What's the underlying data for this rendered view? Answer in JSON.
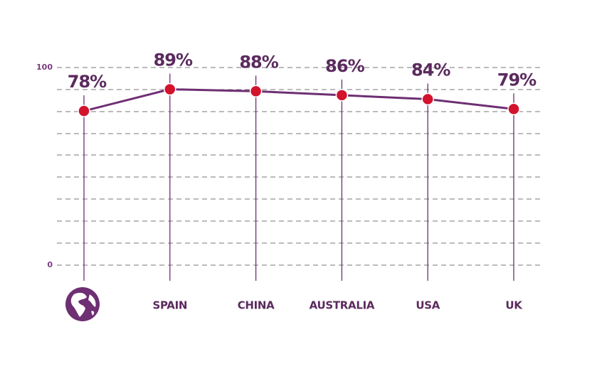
{
  "chart_data": {
    "type": "line",
    "categories": [
      null,
      "SPAIN",
      "CHINA",
      "AUSTRALIA",
      "USA",
      "UK"
    ],
    "values": [
      78,
      89,
      88,
      86,
      84,
      79
    ],
    "value_labels": [
      "78%",
      "89%",
      "88%",
      "86%",
      "84%",
      "79%"
    ],
    "color": "#6e2f73",
    "marker_color": "#d3122c",
    "ylim": [
      0,
      100
    ],
    "yticks": [
      0,
      100
    ],
    "grid": true
  }
}
